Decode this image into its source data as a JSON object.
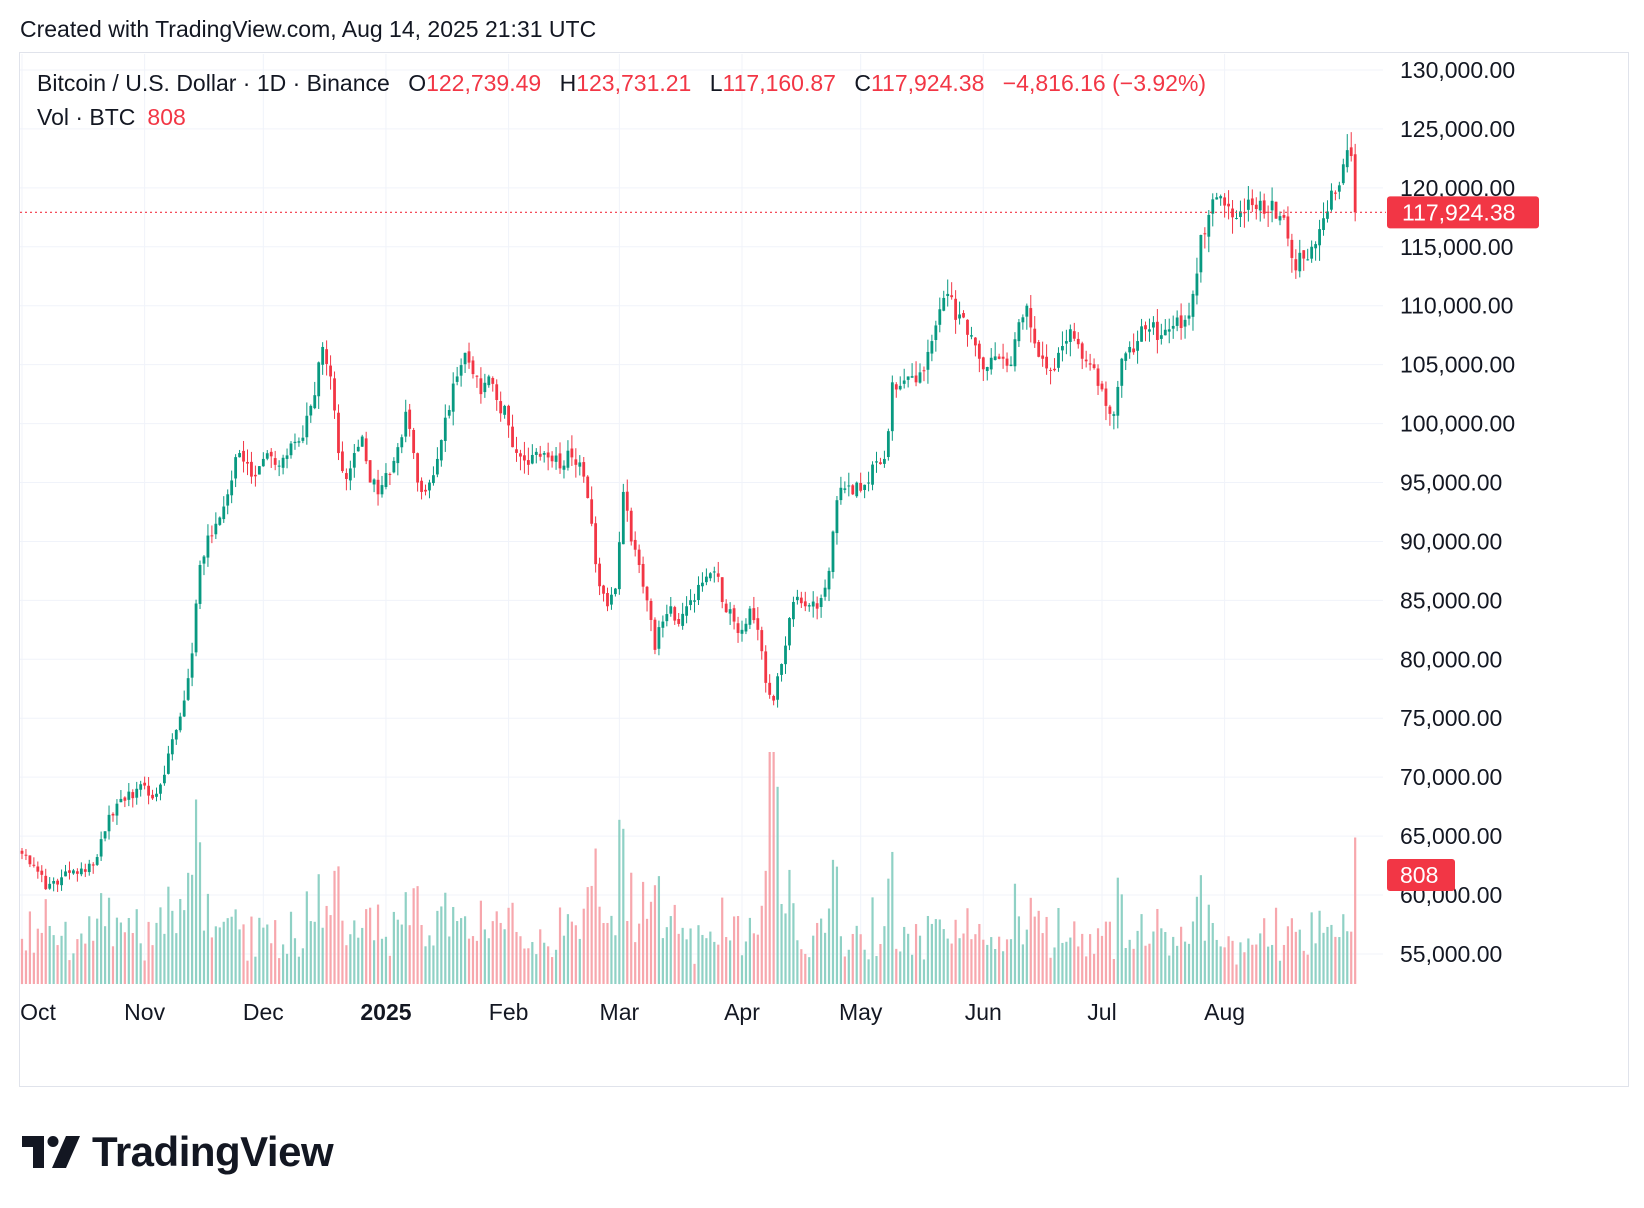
{
  "header": {
    "created": "Created with TradingView.com, Aug 14, 2025 21:31 UTC"
  },
  "legend": {
    "symbol": "Bitcoin / U.S. Dollar · 1D · Binance",
    "o_label": "O",
    "o_value": "122,739.49",
    "h_label": "H",
    "h_value": "123,731.21",
    "l_label": "L",
    "l_value": "117,160.87",
    "c_label": "C",
    "c_value": "117,924.38",
    "change": "−4,816.16 (−3.92%)",
    "vol_label": "Vol · BTC",
    "vol_value": "808"
  },
  "badges": {
    "last_price": "117,924.38",
    "last_volume": "808"
  },
  "brand": {
    "name": "TradingView"
  },
  "colors": {
    "up": "#089981",
    "down": "#f23645",
    "vol_up": "#8fd1c5",
    "vol_down": "#f7a7ad",
    "grid": "#f0f3fa"
  },
  "chart_data": {
    "type": "candlestick",
    "title": "Bitcoin / U.S. Dollar · 1D · Binance",
    "ylim": [
      52000,
      131000
    ],
    "y_ticks": [
      "130,000.00",
      "125,000.00",
      "120,000.00",
      "115,000.00",
      "110,000.00",
      "105,000.00",
      "100,000.00",
      "95,000.00",
      "90,000.00",
      "85,000.00",
      "80,000.00",
      "75,000.00",
      "70,000.00",
      "65,000.00",
      "60,000.00",
      "55,000.00"
    ],
    "x_ticks": [
      {
        "label": "Oct",
        "day": 0,
        "bold": false
      },
      {
        "label": "Nov",
        "day": 31,
        "bold": false
      },
      {
        "label": "Dec",
        "day": 61,
        "bold": false
      },
      {
        "label": "2025",
        "day": 92,
        "bold": true
      },
      {
        "label": "Feb",
        "day": 123,
        "bold": false
      },
      {
        "label": "Mar",
        "day": 151,
        "bold": false
      },
      {
        "label": "Apr",
        "day": 182,
        "bold": false
      },
      {
        "label": "May",
        "day": 212,
        "bold": false
      },
      {
        "label": "Jun",
        "day": 243,
        "bold": false
      },
      {
        "label": "Jul",
        "day": 273,
        "bold": false
      },
      {
        "label": "Aug",
        "day": 304,
        "bold": false
      }
    ],
    "close_anchors": [
      [
        0,
        63500
      ],
      [
        3,
        62500
      ],
      [
        6,
        60500
      ],
      [
        10,
        61500
      ],
      [
        14,
        61800
      ],
      [
        18,
        62500
      ],
      [
        22,
        66800
      ],
      [
        26,
        68000
      ],
      [
        30,
        69400
      ],
      [
        33,
        68200
      ],
      [
        36,
        70200
      ],
      [
        39,
        74000
      ],
      [
        41,
        76500
      ],
      [
        43,
        80500
      ],
      [
        45,
        88000
      ],
      [
        47,
        90500
      ],
      [
        49,
        91500
      ],
      [
        52,
        94000
      ],
      [
        55,
        97500
      ],
      [
        58,
        95500
      ],
      [
        61,
        97000
      ],
      [
        64,
        96500
      ],
      [
        67,
        97300
      ],
      [
        70,
        98500
      ],
      [
        73,
        101500
      ],
      [
        76,
        106500
      ],
      [
        78,
        104000
      ],
      [
        80,
        97500
      ],
      [
        82,
        95300
      ],
      [
        84,
        97500
      ],
      [
        86,
        98900
      ],
      [
        88,
        95000
      ],
      [
        90,
        94000
      ],
      [
        92,
        95800
      ],
      [
        95,
        98000
      ],
      [
        97,
        101000
      ],
      [
        99,
        97500
      ],
      [
        101,
        94200
      ],
      [
        103,
        95000
      ],
      [
        105,
        97000
      ],
      [
        107,
        100500
      ],
      [
        110,
        104000
      ],
      [
        112,
        106000
      ],
      [
        114,
        104200
      ],
      [
        116,
        102500
      ],
      [
        118,
        104000
      ],
      [
        120,
        102000
      ],
      [
        122,
        101500
      ],
      [
        124,
        98000
      ],
      [
        126,
        97200
      ],
      [
        128,
        96500
      ],
      [
        130,
        97600
      ],
      [
        132,
        97500
      ],
      [
        134,
        96800
      ],
      [
        136,
        96200
      ],
      [
        138,
        97700
      ],
      [
        140,
        96500
      ],
      [
        142,
        95500
      ],
      [
        144,
        91500
      ],
      [
        146,
        86200
      ],
      [
        148,
        84500
      ],
      [
        150,
        86000
      ],
      [
        152,
        94200
      ],
      [
        154,
        90000
      ],
      [
        156,
        88000
      ],
      [
        158,
        85000
      ],
      [
        160,
        80800
      ],
      [
        162,
        83200
      ],
      [
        164,
        84500
      ],
      [
        166,
        83000
      ],
      [
        168,
        84500
      ],
      [
        170,
        85000
      ],
      [
        172,
        86500
      ],
      [
        174,
        87300
      ],
      [
        176,
        87000
      ],
      [
        178,
        84000
      ],
      [
        180,
        83200
      ],
      [
        182,
        82500
      ],
      [
        184,
        84300
      ],
      [
        186,
        82500
      ],
      [
        188,
        78000
      ],
      [
        190,
        76500
      ],
      [
        192,
        79600
      ],
      [
        194,
        83500
      ],
      [
        196,
        85300
      ],
      [
        198,
        84500
      ],
      [
        200,
        84900
      ],
      [
        202,
        85200
      ],
      [
        204,
        87500
      ],
      [
        206,
        93500
      ],
      [
        208,
        94500
      ],
      [
        210,
        94000
      ],
      [
        212,
        94300
      ],
      [
        214,
        95000
      ],
      [
        216,
        96800
      ],
      [
        218,
        97000
      ],
      [
        220,
        103500
      ],
      [
        222,
        103200
      ],
      [
        224,
        104000
      ],
      [
        226,
        103500
      ],
      [
        228,
        104500
      ],
      [
        230,
        107000
      ],
      [
        232,
        109700
      ],
      [
        234,
        111000
      ],
      [
        236,
        108800
      ],
      [
        238,
        109000
      ],
      [
        240,
        107500
      ],
      [
        242,
        105500
      ],
      [
        244,
        104800
      ],
      [
        246,
        105700
      ],
      [
        248,
        105500
      ],
      [
        250,
        105000
      ],
      [
        252,
        108600
      ],
      [
        254,
        110000
      ],
      [
        256,
        106800
      ],
      [
        258,
        105500
      ],
      [
        260,
        104500
      ],
      [
        262,
        106000
      ],
      [
        264,
        107000
      ],
      [
        266,
        107200
      ],
      [
        268,
        105500
      ],
      [
        270,
        105000
      ],
      [
        272,
        103200
      ],
      [
        274,
        101500
      ],
      [
        276,
        100800
      ],
      [
        278,
        105500
      ],
      [
        280,
        106500
      ],
      [
        282,
        107000
      ],
      [
        284,
        108000
      ],
      [
        286,
        108600
      ],
      [
        288,
        107500
      ],
      [
        290,
        108000
      ],
      [
        292,
        109000
      ],
      [
        294,
        108800
      ],
      [
        296,
        111000
      ],
      [
        298,
        116000
      ],
      [
        300,
        117700
      ],
      [
        302,
        119200
      ],
      [
        304,
        118500
      ],
      [
        306,
        117500
      ],
      [
        308,
        118000
      ],
      [
        310,
        119000
      ],
      [
        312,
        118200
      ],
      [
        314,
        117800
      ],
      [
        316,
        118900
      ],
      [
        318,
        117600
      ],
      [
        320,
        115700
      ],
      [
        322,
        113000
      ],
      [
        324,
        114000
      ],
      [
        326,
        115000
      ],
      [
        328,
        116500
      ],
      [
        330,
        118000
      ],
      [
        332,
        119500
      ],
      [
        334,
        122000
      ],
      [
        335,
        123200
      ],
      [
        336,
        122700
      ],
      [
        337,
        117924
      ]
    ],
    "last_close": 117924.38,
    "last_change": -4816.16,
    "last_change_pct": -3.92,
    "last_volume": 808
  }
}
